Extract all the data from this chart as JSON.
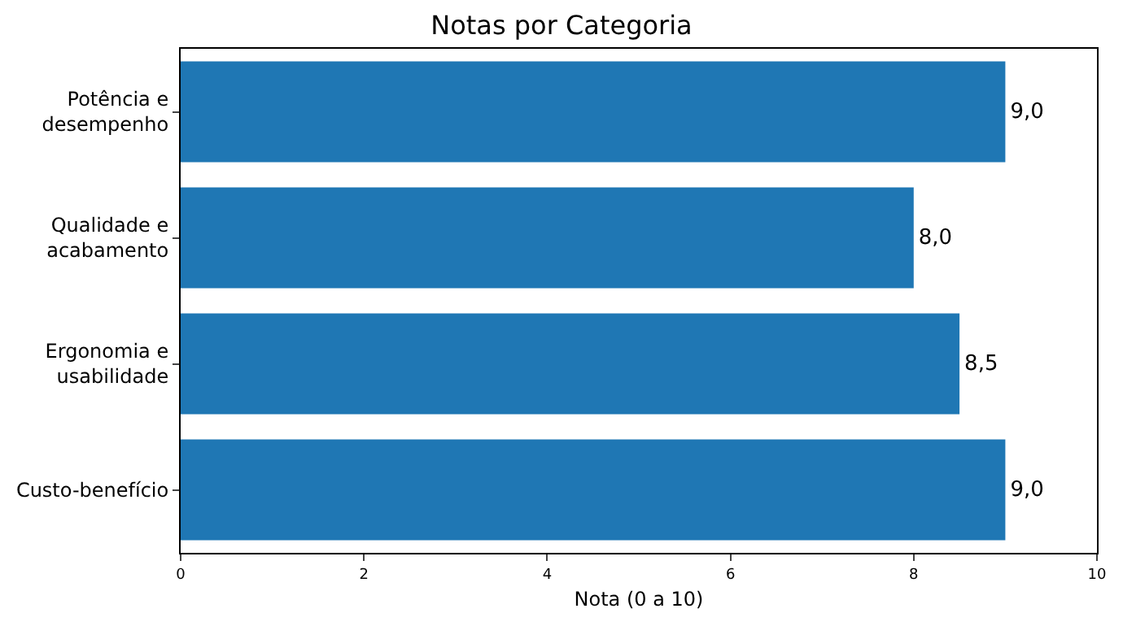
{
  "chart_data": {
    "type": "bar",
    "orientation": "horizontal",
    "title": "Notas por Categoria",
    "xlabel": "Nota (0 a 10)",
    "categories": [
      "Potência e\ndesempenho",
      "Qualidade e\nacabamento",
      "Ergonomia e\nusabilidade",
      "Custo-benefício"
    ],
    "values": [
      9.0,
      8.0,
      8.5,
      9.0
    ],
    "value_labels": [
      "9,0",
      "8,0",
      "8,5",
      "9,0"
    ],
    "color": "#1f77b4",
    "xlim": [
      0,
      10
    ],
    "xticks": [
      0,
      2,
      4,
      6,
      8,
      10
    ]
  }
}
